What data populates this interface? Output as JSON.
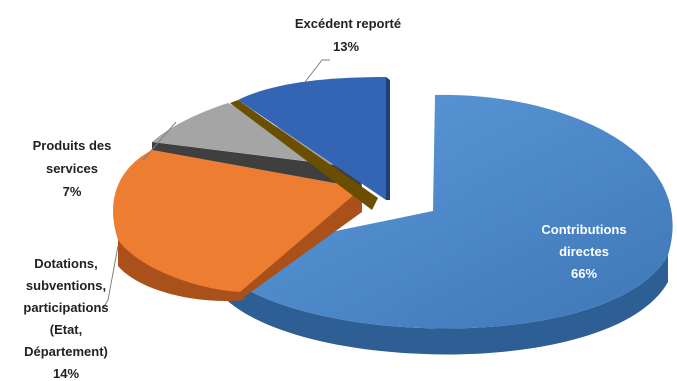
{
  "chart_data": {
    "type": "pie",
    "title": "",
    "slices": [
      {
        "label": "Contributions directes",
        "lines": [
          "Contributions",
          "directes"
        ],
        "value": 66,
        "value_label": "66%",
        "color": "#4A86C8",
        "side": "#2E5F94",
        "exploded": true,
        "label_inside": true
      },
      {
        "label": "Dotations, subventions, participations (Etat, Département)",
        "lines": [
          "Dotations,",
          "subventions,",
          "participations",
          "(Etat,",
          "Département)"
        ],
        "value": 14,
        "value_label": "14%",
        "color": "#ED7D31",
        "side": "#A9501B",
        "exploded": false,
        "label_inside": false
      },
      {
        "label": "Produits des services",
        "lines": [
          "Produits des",
          "services"
        ],
        "value": 7,
        "value_label": "7%",
        "color": "#A5A5A5",
        "side": "#3F3F3F",
        "exploded": false,
        "label_inside": false
      },
      {
        "label": "Excédent reporté",
        "lines": [
          "Excédent reporté"
        ],
        "value": 13,
        "value_label": "13%",
        "color": "#3465B4",
        "side": "#1F3F78",
        "exploded": false,
        "label_inside": false
      }
    ]
  }
}
